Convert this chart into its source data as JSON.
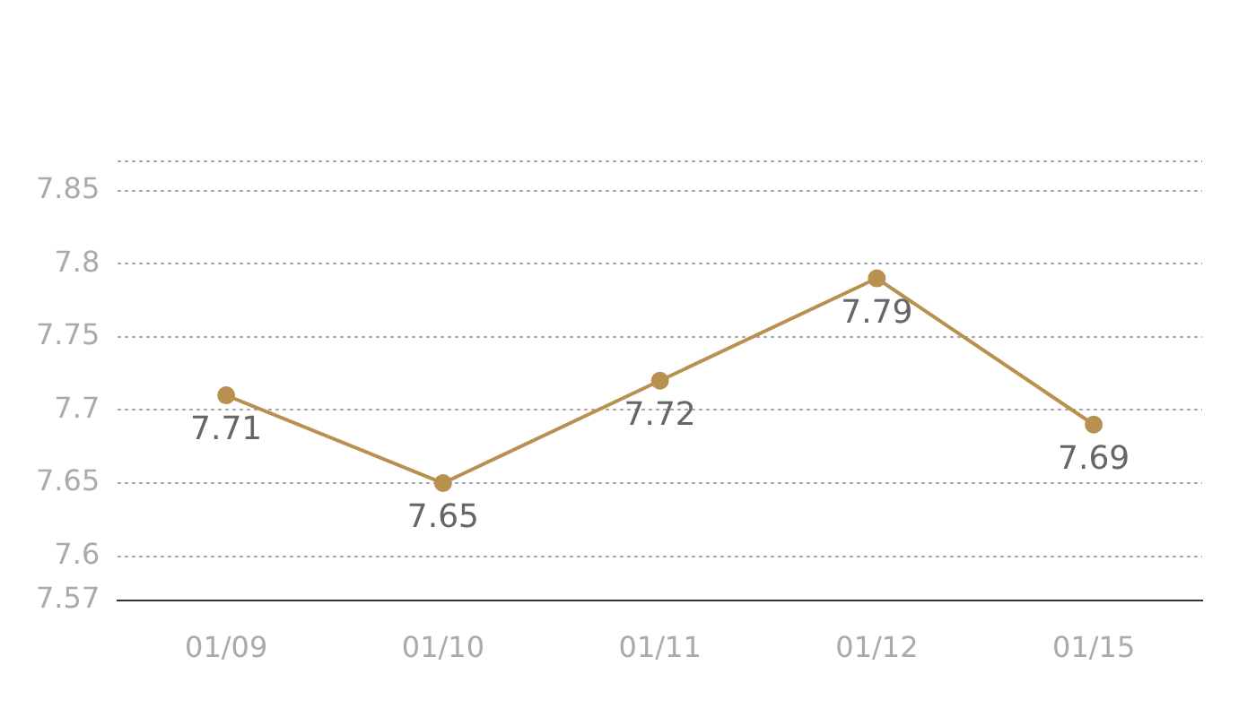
{
  "chart_data": {
    "type": "line",
    "categories": [
      "01/09",
      "01/10",
      "01/11",
      "01/12",
      "01/15"
    ],
    "series": [
      {
        "color": "#b8914f",
        "values": [
          7.71,
          7.65,
          7.72,
          7.79,
          7.69
        ]
      }
    ],
    "ylim": [
      7.57,
      7.87
    ],
    "yticks": [
      7.57,
      7.6,
      7.65,
      7.7,
      7.75,
      7.8,
      7.85,
      {
        "value": 7.87,
        "label": null
      }
    ],
    "grid": "y",
    "legend": false,
    "marker": "circle",
    "line_style": "solid",
    "data_labels": true
  }
}
